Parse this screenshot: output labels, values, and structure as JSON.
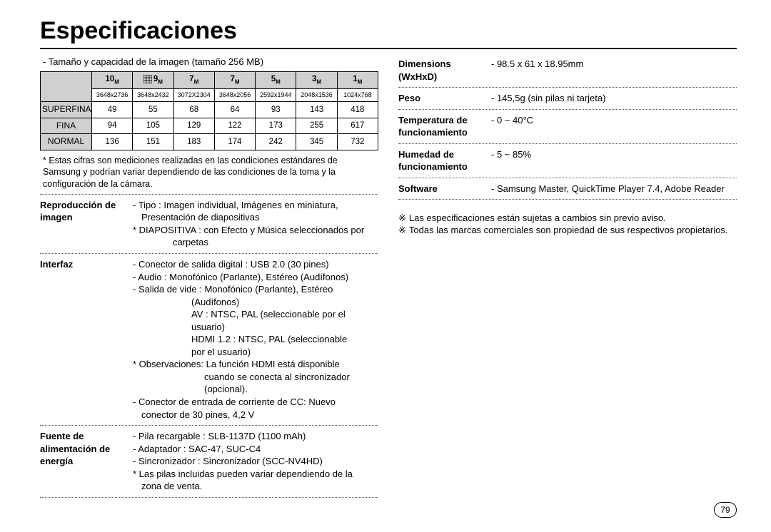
{
  "page": {
    "title": "Especificaciones",
    "subcaption": "- Tamaño y capacidad de la imagen (tamaño 256 MB)",
    "number": "79"
  },
  "table": {
    "megapixels": [
      "10",
      "9",
      "7",
      "7",
      "5",
      "3",
      "1"
    ],
    "resolutions": [
      "3648x2736",
      "3648x2432",
      "3072X2304",
      "3648x2056",
      "2592x1944",
      "2048x1536",
      "1024x768"
    ],
    "rows": [
      {
        "label": "SUPERFINA",
        "vals": [
          "49",
          "55",
          "68",
          "64",
          "93",
          "143",
          "418"
        ]
      },
      {
        "label": "FINA",
        "vals": [
          "94",
          "105",
          "129",
          "122",
          "173",
          "255",
          "617"
        ]
      },
      {
        "label": "NORMAL",
        "vals": [
          "136",
          "151",
          "183",
          "174",
          "242",
          "345",
          "732"
        ]
      }
    ],
    "footnote": "* Estas cifras son mediciones realizadas en las condiciones estándares de Samsung y podrían variar dependiendo de las condiciones de la toma y la configuración de la cámara."
  },
  "leftSpecs": {
    "repro": {
      "label": "Reproducción de imagen",
      "l1": "- Tipo : Imagen individual, Imágenes en miniatura,",
      "l1b": "Presentación de diapositivas",
      "l2": "* DIAPOSITIVA : con Efecto y Música seleccionados por",
      "l2b": "carpetas"
    },
    "interfaz": {
      "label": "Interfaz",
      "l1": "- Conector de salida digital : USB 2.0 (30 pines)",
      "l2": "- Audio : Monofónico (Parlante), Estéreo (Audífonos)",
      "l3": "- Salida de vide : Monofónico (Parlante), Estéreo",
      "l3b": "(Audífonos)",
      "l3c": "AV : NTSC, PAL (seleccionable por el",
      "l3d": "usuario)",
      "l3e": "HDMI 1.2 : NTSC, PAL (seleccionable",
      "l3f": "por el usuario)",
      "l4": "* Observaciones: La función HDMI está disponible",
      "l4b": "cuando se conecta al sincronizador",
      "l4c": "(opcional).",
      "l5": "- Conector de entrada de corriente de CC: Nuevo",
      "l5b": "conector de 30 pines, 4,2 V"
    },
    "power": {
      "label": "Fuente de alimentación de energía",
      "l1": "- Pila recargable : SLB-1137D (1100 mAh)",
      "l2": "- Adaptador : SAC-47, SUC-C4",
      "l3": "- Sincronizador : Sincronizador (SCC-NV4HD)",
      "l4": "* Las pilas incluidas pueden variar dependiendo de la",
      "l4b": "zona de venta."
    }
  },
  "rightSpecs": {
    "dim": {
      "label": "Dimensions (WxHxD)",
      "val": "- 98.5 x 61 x 18.95mm"
    },
    "peso": {
      "label": "Peso",
      "val": "- 145,5g (sin pilas ni tarjeta)"
    },
    "temp": {
      "label": "Temperatura de funcionamiento",
      "val": "- 0 ~ 40°C"
    },
    "hum": {
      "label": "Humedad de funcionamiento",
      "val": "- 5 ~ 85%"
    },
    "sw": {
      "label": "Software",
      "val": "- Samsung Master, QuickTime Player 7.4, Adobe Reader"
    }
  },
  "notes": {
    "n1": "Las especificaciones están sujetas a cambios sin previo aviso.",
    "n2": "Todas las marcas comerciales son propiedad de sus respectivos propietarios."
  },
  "style": {
    "header_bg": "#d0d0d0",
    "border": "#000000",
    "text": "#000000",
    "dot": "#555555"
  }
}
